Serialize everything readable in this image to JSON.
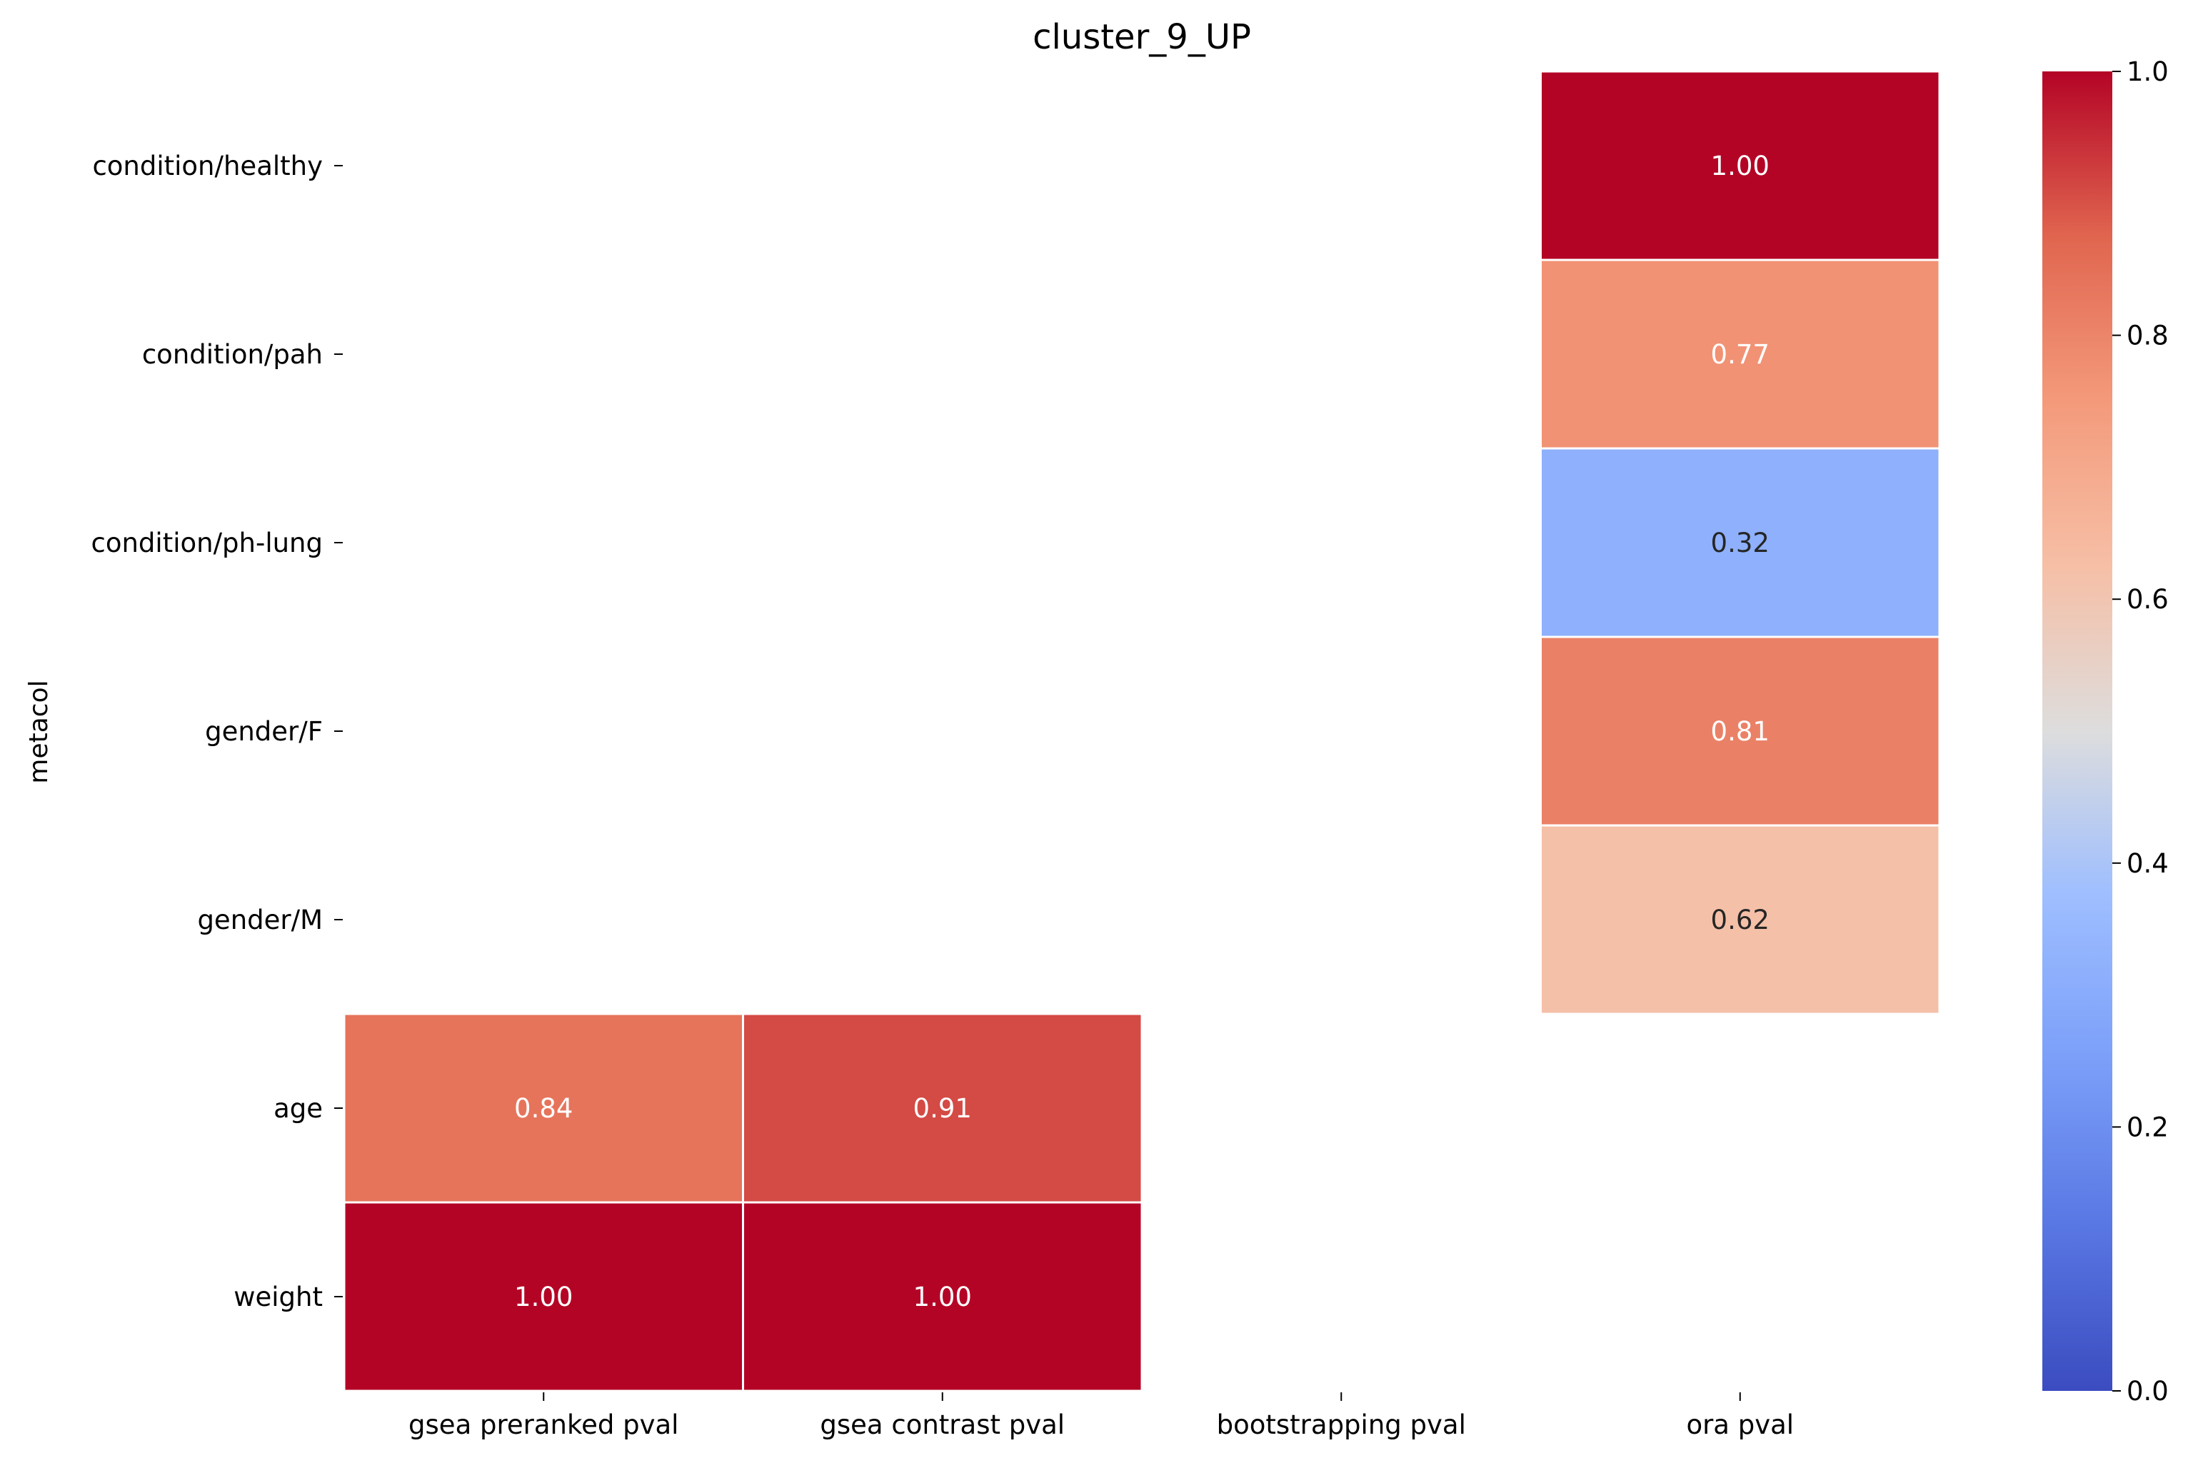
{
  "chart_data": {
    "type": "heatmap",
    "title": "cluster_9_UP",
    "ylabel": "metacol",
    "xlabel": "",
    "rows": [
      "condition/healthy",
      "condition/pah",
      "condition/ph-lung",
      "gender/F",
      "gender/M",
      "age",
      "weight"
    ],
    "columns": [
      "gsea preranked pval",
      "gsea contrast pval",
      "bootstrapping pval",
      "ora pval"
    ],
    "values": [
      [
        null,
        null,
        null,
        1.0
      ],
      [
        null,
        null,
        null,
        0.77
      ],
      [
        null,
        null,
        null,
        0.32
      ],
      [
        null,
        null,
        null,
        0.81
      ],
      [
        null,
        null,
        null,
        0.62
      ],
      [
        0.84,
        0.91,
        null,
        null
      ],
      [
        1.0,
        1.0,
        null,
        null
      ]
    ],
    "value_format": "2 decimals",
    "colormap": "coolwarm",
    "vmin": 0.0,
    "vmax": 1.0,
    "colorbar_ticks": [
      "0.0",
      "0.2",
      "0.4",
      "0.6",
      "0.8",
      "1.0"
    ],
    "colorbar_placement": "right",
    "grid": false,
    "cell_border_color": "#ffffff"
  }
}
